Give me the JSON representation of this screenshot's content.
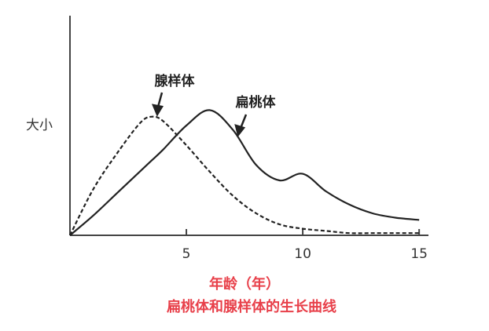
{
  "chart_data": {
    "type": "line",
    "y_label": "大小",
    "x_label": "年龄（年）",
    "caption": "扁桃体和腺样体的生长曲线",
    "x": [
      0,
      1,
      2,
      3,
      3.5,
      4,
      5,
      6,
      7,
      8,
      9,
      10,
      11,
      12,
      13,
      14,
      15
    ],
    "series": [
      {
        "name": "腺样体",
        "color": "#222222",
        "dashed": true,
        "values": [
          0,
          21,
          37,
          51,
          54,
          52,
          41,
          29,
          18,
          10,
          5,
          3,
          2,
          1,
          1,
          1,
          1
        ]
      },
      {
        "name": "扁桃体",
        "color": "#222222",
        "dashed": false,
        "values": [
          0,
          9,
          19,
          29,
          34,
          39,
          50,
          57,
          48,
          32,
          25,
          28,
          20,
          14,
          10,
          8,
          7
        ]
      }
    ],
    "xlim": [
      0,
      15.4
    ],
    "ylim": [
      0,
      100
    ],
    "xticks": [
      5,
      10,
      15
    ],
    "grid": false
  }
}
